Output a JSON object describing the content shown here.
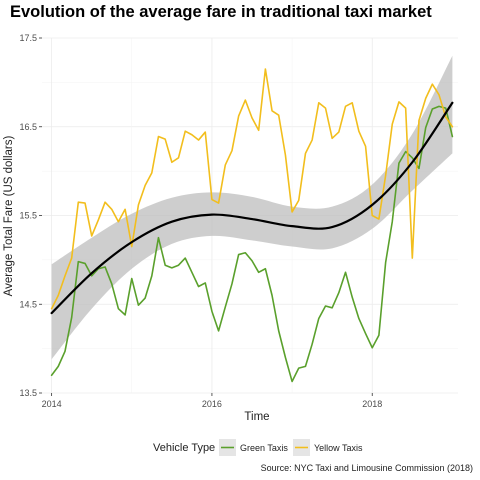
{
  "chart_data": {
    "type": "line",
    "title": "Evolution of the average fare in traditional taxi market",
    "xlabel": "Time",
    "ylabel": "Average Total Fare (US dollars)",
    "xlim": [
      2014,
      2019
    ],
    "ylim": [
      13.5,
      17.5
    ],
    "x_ticks": [
      {
        "value": 2014,
        "label": "2014"
      },
      {
        "value": 2016,
        "label": "2016"
      },
      {
        "value": 2018,
        "label": "2018"
      }
    ],
    "y_ticks": [
      {
        "value": 13.5,
        "label": "13.5"
      },
      {
        "value": 14.5,
        "label": "14.5"
      },
      {
        "value": 15.5,
        "label": "15.5"
      },
      {
        "value": 16.5,
        "label": "16.5"
      },
      {
        "value": 17.5,
        "label": "17.5"
      }
    ],
    "grid": true,
    "legend": {
      "title": "Vehicle Type",
      "position": "bottom",
      "entries": [
        "Green Taxis",
        "Yellow Taxis"
      ]
    },
    "caption": "Source: NYC Taxi and Limousine Commission (2018)",
    "series": [
      {
        "name": "Green Taxis",
        "color": "#5aa02c",
        "x": [
          2014,
          2014.083,
          2014.167,
          2014.25,
          2014.333,
          2014.417,
          2014.5,
          2014.583,
          2014.667,
          2014.75,
          2014.833,
          2014.917,
          2015,
          2015.083,
          2015.167,
          2015.25,
          2015.333,
          2015.417,
          2015.5,
          2015.583,
          2015.667,
          2015.75,
          2015.833,
          2015.917,
          2016,
          2016.083,
          2016.167,
          2016.25,
          2016.333,
          2016.417,
          2016.5,
          2016.583,
          2016.667,
          2016.75,
          2016.833,
          2016.917,
          2017,
          2017.083,
          2017.167,
          2017.25,
          2017.333,
          2017.417,
          2017.5,
          2017.583,
          2017.667,
          2017.75,
          2017.833,
          2017.917,
          2018,
          2018.083,
          2018.167,
          2018.25,
          2018.333,
          2018.417,
          2018.5,
          2018.583,
          2018.667,
          2018.75,
          2018.833,
          2018.917,
          2019
        ],
        "values": [
          13.7,
          13.8,
          13.97,
          14.35,
          14.98,
          14.96,
          14.82,
          14.9,
          14.92,
          14.73,
          14.45,
          14.38,
          14.79,
          14.49,
          14.57,
          14.82,
          15.25,
          14.94,
          14.91,
          14.94,
          15.02,
          14.86,
          14.7,
          14.74,
          14.42,
          14.2,
          14.47,
          14.73,
          15.06,
          15.08,
          14.99,
          14.86,
          14.9,
          14.6,
          14.2,
          13.9,
          13.63,
          13.78,
          13.8,
          14.05,
          14.34,
          14.48,
          14.46,
          14.63,
          14.86,
          14.58,
          14.34,
          14.17,
          14.01,
          14.15,
          14.97,
          15.43,
          16.09,
          16.22,
          16.15,
          16.03,
          16.49,
          16.7,
          16.73,
          16.71,
          16.39
        ]
      },
      {
        "name": "Yellow Taxis",
        "color": "#f2be1d",
        "x": [
          2014,
          2014.083,
          2014.167,
          2014.25,
          2014.333,
          2014.417,
          2014.5,
          2014.583,
          2014.667,
          2014.75,
          2014.833,
          2014.917,
          2015,
          2015.083,
          2015.167,
          2015.25,
          2015.333,
          2015.417,
          2015.5,
          2015.583,
          2015.667,
          2015.75,
          2015.833,
          2015.917,
          2016,
          2016.083,
          2016.167,
          2016.25,
          2016.333,
          2016.417,
          2016.5,
          2016.583,
          2016.667,
          2016.75,
          2016.833,
          2016.917,
          2017,
          2017.083,
          2017.167,
          2017.25,
          2017.333,
          2017.417,
          2017.5,
          2017.583,
          2017.667,
          2017.75,
          2017.833,
          2017.917,
          2018,
          2018.083,
          2018.167,
          2018.25,
          2018.333,
          2018.417,
          2018.5,
          2018.583,
          2018.667,
          2018.75,
          2018.833,
          2018.917,
          2019
        ],
        "values": [
          14.45,
          14.6,
          14.82,
          15.02,
          15.65,
          15.64,
          15.27,
          15.45,
          15.65,
          15.57,
          15.43,
          15.57,
          15.15,
          15.62,
          15.84,
          15.98,
          16.39,
          16.36,
          16.1,
          16.15,
          16.45,
          16.41,
          16.35,
          16.44,
          15.68,
          15.64,
          16.07,
          16.23,
          16.62,
          16.8,
          16.6,
          16.46,
          17.15,
          16.68,
          16.63,
          16.18,
          15.54,
          15.67,
          16.2,
          16.35,
          16.77,
          16.71,
          16.37,
          16.44,
          16.73,
          16.77,
          16.45,
          16.28,
          15.5,
          15.46,
          15.95,
          16.53,
          16.78,
          16.71,
          15.02,
          16.57,
          16.82,
          16.98,
          16.86,
          16.61,
          16.5
        ]
      },
      {
        "name": "",
        "role": "smoothed trend",
        "color": "#000000",
        "x": [
          2014,
          2014.5,
          2015,
          2015.5,
          2016,
          2016.5,
          2017,
          2017.5,
          2018,
          2018.5,
          2019
        ],
        "values": [
          14.4,
          14.85,
          15.2,
          15.43,
          15.51,
          15.46,
          15.38,
          15.37,
          15.62,
          16.1,
          16.77
        ]
      }
    ],
    "confidence_band": {
      "x": [
        2014,
        2014.5,
        2015,
        2015.5,
        2016,
        2016.5,
        2017,
        2017.5,
        2018,
        2018.5,
        2019
      ],
      "upper": [
        14.95,
        15.25,
        15.52,
        15.7,
        15.76,
        15.71,
        15.6,
        15.6,
        15.85,
        16.42,
        17.3
      ],
      "lower": [
        13.88,
        14.45,
        14.9,
        15.18,
        15.27,
        15.22,
        15.15,
        15.13,
        15.35,
        15.78,
        16.2
      ],
      "color": "#bebebe"
    }
  }
}
